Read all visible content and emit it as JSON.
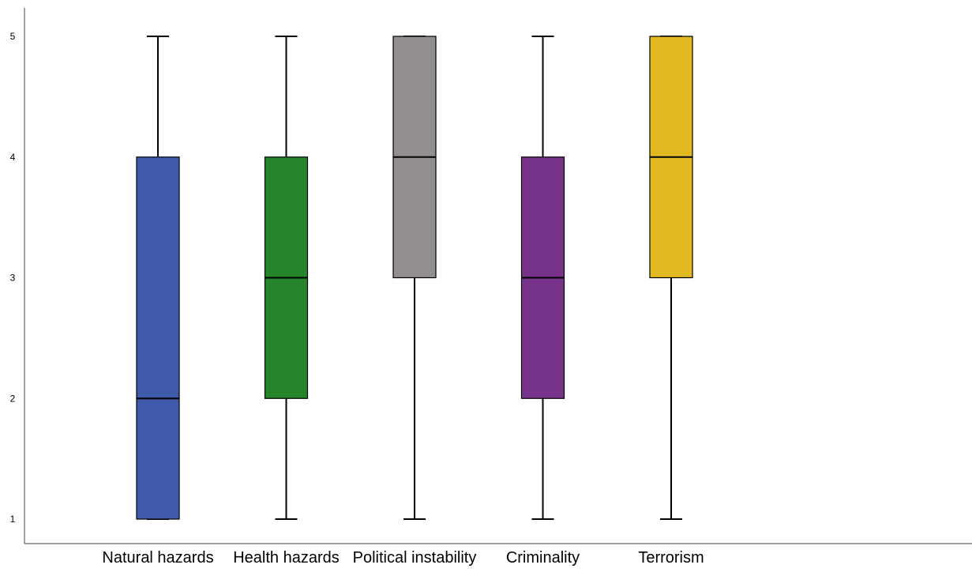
{
  "chart_data": {
    "type": "boxplot",
    "title": "",
    "xlabel": "",
    "ylabel": "",
    "ylim": [
      1,
      5
    ],
    "yticks": [
      1,
      2,
      3,
      4,
      5
    ],
    "ytick_labels": [
      "1",
      "2",
      "3",
      "4",
      "5"
    ],
    "grid": false,
    "legend": "none",
    "categories": [
      "Natural hazards",
      "Health hazards",
      "Political instability",
      "Criminality",
      "Terrorism"
    ],
    "boxes": [
      {
        "category": "Natural hazards",
        "min": 1,
        "q1": 1,
        "median": 2,
        "q3": 4,
        "max": 5,
        "color": "#3f5aa8"
      },
      {
        "category": "Health hazards",
        "min": 1,
        "q1": 2,
        "median": 3,
        "q3": 4,
        "max": 5,
        "color": "#26842a"
      },
      {
        "category": "Political instability",
        "min": 1,
        "q1": 3,
        "median": 4,
        "q3": 5,
        "max": 5,
        "color": "#938f8e"
      },
      {
        "category": "Criminality",
        "min": 1,
        "q1": 2,
        "median": 3,
        "q3": 4,
        "max": 5,
        "color": "#773389"
      },
      {
        "category": "Terrorism",
        "min": 1,
        "q1": 3,
        "median": 4,
        "q3": 5,
        "max": 5,
        "color": "#e2b920"
      }
    ]
  }
}
